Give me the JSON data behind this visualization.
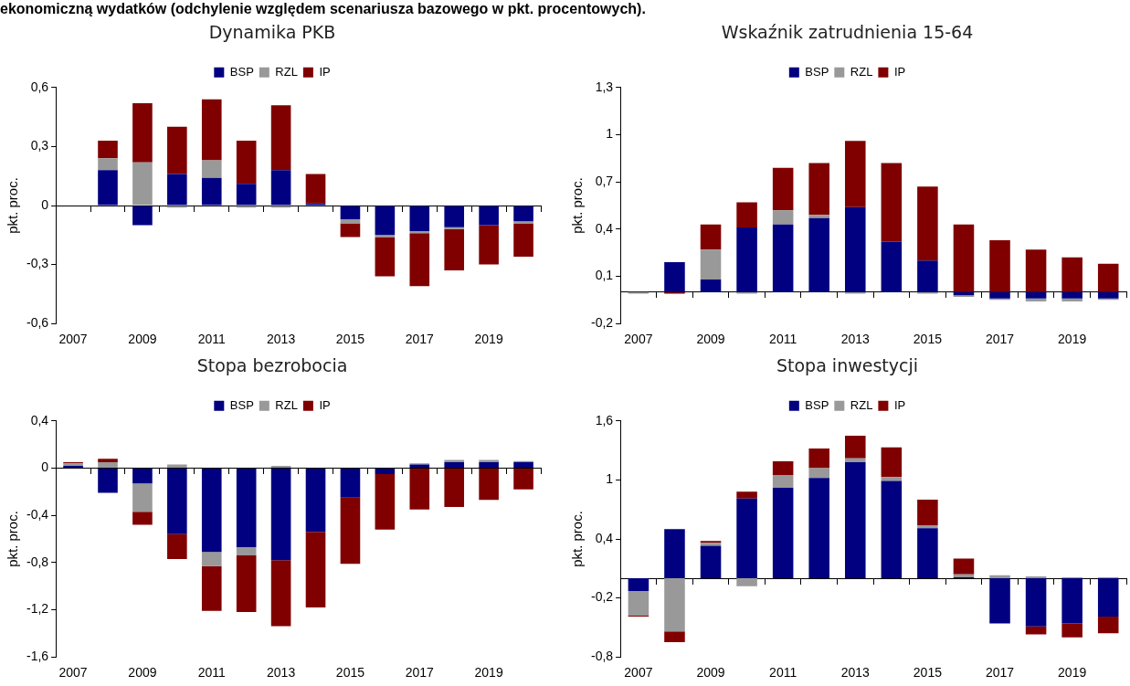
{
  "chart_data": [
    {
      "type": "other",
      "title": "ekonomiczną wydatków (odchylenie względem scenariusza bazowego w pkt. procentowych)."
    },
    {
      "type": "bar",
      "title": "Dynamika PKB",
      "ylabel": "pkt. proc.",
      "categories": [
        "2007",
        null,
        "2009",
        null,
        "2011",
        null,
        "2013",
        null,
        "2015",
        null,
        "2017",
        null,
        "2019",
        null
      ],
      "stacked": true,
      "legend": "top",
      "ylim": [
        -0.6,
        0.6
      ],
      "yticks": [
        {
          "value": -0.6,
          "label": "-0,6"
        },
        {
          "value": -0.3,
          "label": "-0,3"
        },
        {
          "value": 0,
          "label": "0"
        },
        {
          "value": 0.3,
          "label": "0,3"
        },
        {
          "value": 0.6,
          "label": "0,6"
        }
      ],
      "series": [
        {
          "name": "BSP",
          "color": "#000080",
          "values": [
            null,
            0.18,
            -0.1,
            0.16,
            0.14,
            0.11,
            0.18,
            0.01,
            -0.07,
            -0.15,
            -0.13,
            -0.11,
            -0.1,
            -0.08
          ]
        },
        {
          "name": "RZL",
          "color": "#999999",
          "values": [
            null,
            0.06,
            0.22,
            -0.01,
            0.09,
            -0.01,
            -0.01,
            null,
            -0.02,
            -0.01,
            -0.01,
            -0.01,
            null,
            -0.01
          ]
        },
        {
          "name": "IP",
          "color": "#800000",
          "values": [
            null,
            0.09,
            0.3,
            0.24,
            0.31,
            0.22,
            0.33,
            0.15,
            -0.07,
            -0.2,
            -0.27,
            -0.21,
            -0.2,
            -0.17
          ]
        }
      ]
    },
    {
      "type": "bar",
      "title": "Wskaźnik zatrudnienia 15-64",
      "ylabel": "pkt. proc.",
      "categories": [
        "2007",
        null,
        "2009",
        null,
        "2011",
        null,
        "2013",
        null,
        "2015",
        null,
        "2017",
        null,
        "2019",
        null
      ],
      "stacked": true,
      "legend": "top",
      "ylim": [
        -0.2,
        1.3
      ],
      "yticks": [
        {
          "value": -0.2,
          "label": "-0,2"
        },
        {
          "value": 0.1,
          "label": "0,1"
        },
        {
          "value": 0.4,
          "label": "0,4"
        },
        {
          "value": 0.7,
          "label": "0,7"
        },
        {
          "value": 1,
          "label": "1"
        },
        {
          "value": 1.3,
          "label": "1,3"
        }
      ],
      "series": [
        {
          "name": "BSP",
          "color": "#000080",
          "values": [
            null,
            0.19,
            0.08,
            0.41,
            0.43,
            0.47,
            0.54,
            0.32,
            0.2,
            -0.02,
            -0.04,
            -0.04,
            -0.04,
            -0.04
          ]
        },
        {
          "name": "RZL",
          "color": "#999999",
          "values": [
            -0.01,
            null,
            0.19,
            -0.01,
            0.09,
            0.02,
            -0.01,
            null,
            -0.01,
            -0.01,
            -0.01,
            -0.02,
            -0.02,
            -0.01
          ]
        },
        {
          "name": "IP",
          "color": "#800000",
          "values": [
            null,
            -0.01,
            0.16,
            0.16,
            0.27,
            0.33,
            0.42,
            0.5,
            0.47,
            0.43,
            0.33,
            0.27,
            0.22,
            0.18
          ]
        }
      ]
    },
    {
      "type": "bar",
      "title": "Stopa bezrobocia",
      "ylabel": "pkt. proc.",
      "categories": [
        "2007",
        null,
        "2009",
        null,
        "2011",
        null,
        "2013",
        null,
        "2015",
        null,
        "2017",
        null,
        "2019",
        null
      ],
      "stacked": true,
      "legend": "top",
      "ylim": [
        -1.6,
        0.4
      ],
      "yticks": [
        {
          "value": -1.6,
          "label": "-1,6"
        },
        {
          "value": -1.2,
          "label": "-1,2"
        },
        {
          "value": -0.8,
          "label": "-0,8"
        },
        {
          "value": -0.4,
          "label": "-0,4"
        },
        {
          "value": 0,
          "label": "0"
        },
        {
          "value": 0.4,
          "label": "0,4"
        }
      ],
      "series": [
        {
          "name": "BSP",
          "color": "#000080",
          "values": [
            0.02,
            -0.21,
            -0.13,
            -0.56,
            -0.71,
            -0.67,
            -0.78,
            -0.54,
            -0.25,
            -0.05,
            0.03,
            0.05,
            0.05,
            0.05
          ]
        },
        {
          "name": "RZL",
          "color": "#999999",
          "values": [
            0.02,
            0.05,
            -0.24,
            0.03,
            -0.12,
            -0.07,
            0.02,
            null,
            null,
            null,
            0.01,
            0.02,
            0.02,
            0.01
          ]
        },
        {
          "name": "IP",
          "color": "#800000",
          "values": [
            0.01,
            0.03,
            -0.11,
            -0.21,
            -0.38,
            -0.48,
            -0.56,
            -0.64,
            -0.56,
            -0.47,
            -0.35,
            -0.33,
            -0.27,
            -0.18
          ]
        }
      ]
    },
    {
      "type": "bar",
      "title": "Stopa inwestycji",
      "ylabel": "pkt. proc.",
      "categories": [
        "2007",
        null,
        "2009",
        null,
        "2011",
        null,
        "2013",
        null,
        "2015",
        null,
        "2017",
        null,
        "2019",
        null
      ],
      "stacked": true,
      "legend": "top",
      "ylim": [
        -0.8,
        1.6
      ],
      "yticks": [
        {
          "value": -0.8,
          "label": "-0,8"
        },
        {
          "value": -0.2,
          "label": "-0,2"
        },
        {
          "value": 0.4,
          "label": "0,4"
        },
        {
          "value": 1,
          "label": "1"
        },
        {
          "value": 1.6,
          "label": "1,6"
        }
      ],
      "series": [
        {
          "name": "BSP",
          "color": "#000080",
          "values": [
            -0.13,
            0.5,
            0.33,
            0.81,
            0.92,
            1.02,
            1.18,
            0.99,
            0.51,
            0.01,
            -0.46,
            -0.49,
            -0.46,
            -0.39
          ]
        },
        {
          "name": "RZL",
          "color": "#999999",
          "values": [
            -0.25,
            -0.54,
            0.03,
            -0.08,
            0.13,
            0.1,
            0.04,
            0.04,
            0.03,
            0.03,
            0.03,
            0.02,
            0.01,
            0.01
          ]
        },
        {
          "name": "IP",
          "color": "#800000",
          "values": [
            -0.01,
            -0.11,
            0.02,
            0.07,
            0.14,
            0.2,
            0.23,
            0.3,
            0.26,
            0.16,
            null,
            -0.08,
            -0.14,
            -0.17
          ]
        }
      ]
    }
  ]
}
